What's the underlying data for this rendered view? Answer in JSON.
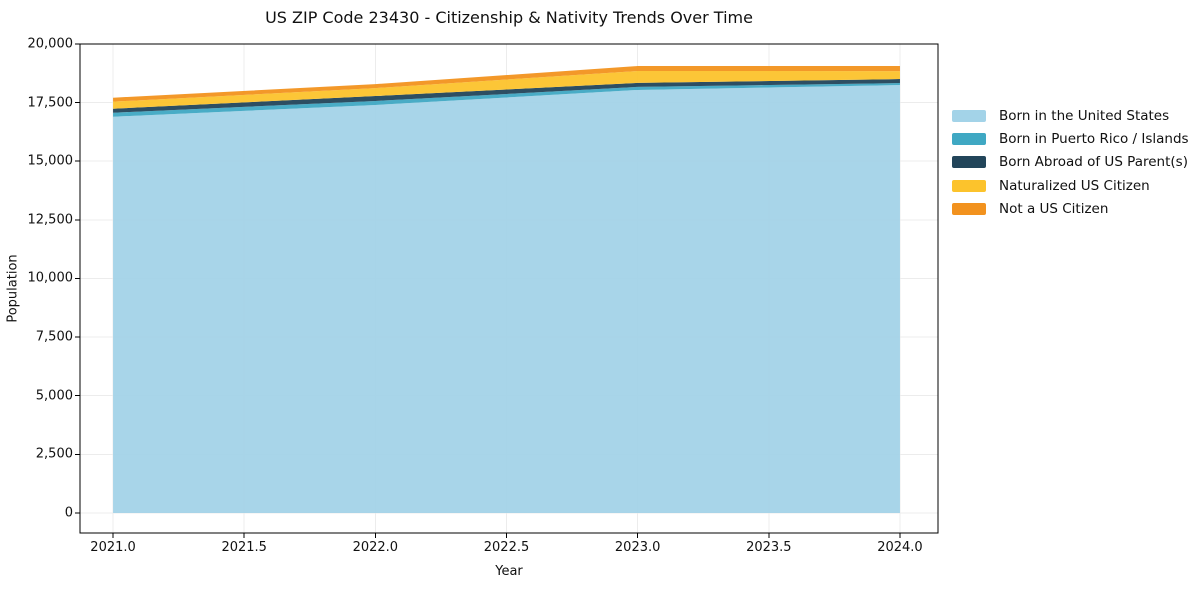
{
  "chart_data": {
    "type": "area",
    "stacked": true,
    "title": "US ZIP Code 23430 - Citizenship & Nativity Trends Over Time",
    "xlabel": "Year",
    "ylabel": "Population",
    "x": [
      2021,
      2022,
      2023,
      2024
    ],
    "series": [
      {
        "name": "Born in the United States",
        "color": "#A3D3E8",
        "values": [
          16900,
          17400,
          18040,
          18250
        ]
      },
      {
        "name": "Born in Puerto Rico / Islands",
        "color": "#3FA8C3",
        "values": [
          170,
          170,
          130,
          85
        ]
      },
      {
        "name": "Born Abroad of US Parent(s)",
        "color": "#22455A",
        "values": [
          170,
          210,
          170,
          170
        ]
      },
      {
        "name": "Naturalized US Citizen",
        "color": "#FCC32C",
        "values": [
          300,
          340,
          510,
          340
        ]
      },
      {
        "name": "Not a US Citizen",
        "color": "#F2921E",
        "values": [
          170,
          170,
          210,
          215
        ]
      }
    ],
    "totals": [
      17710,
      18290,
      19060,
      19060
    ],
    "xlim": [
      2020.874,
      2024.145
    ],
    "ylim": [
      -853,
      20000
    ],
    "xticks": {
      "values": [
        2021.0,
        2021.5,
        2022.0,
        2022.5,
        2023.0,
        2023.5,
        2024.0
      ],
      "labels": [
        "2021.0",
        "2021.5",
        "2022.0",
        "2022.5",
        "2023.0",
        "2023.5",
        "2024.0"
      ]
    },
    "yticks": {
      "values": [
        0,
        2500,
        5000,
        7500,
        10000,
        12500,
        15000,
        17500,
        20000
      ],
      "labels": [
        "0",
        "2,500",
        "5,000",
        "7,500",
        "10,000",
        "12,500",
        "15,000",
        "17,500",
        "20,000"
      ]
    },
    "grid": true,
    "legend_position": "outside-right",
    "fill_opacity": 0.95,
    "grid_color": "#ececec",
    "spine_color": "#000000"
  }
}
